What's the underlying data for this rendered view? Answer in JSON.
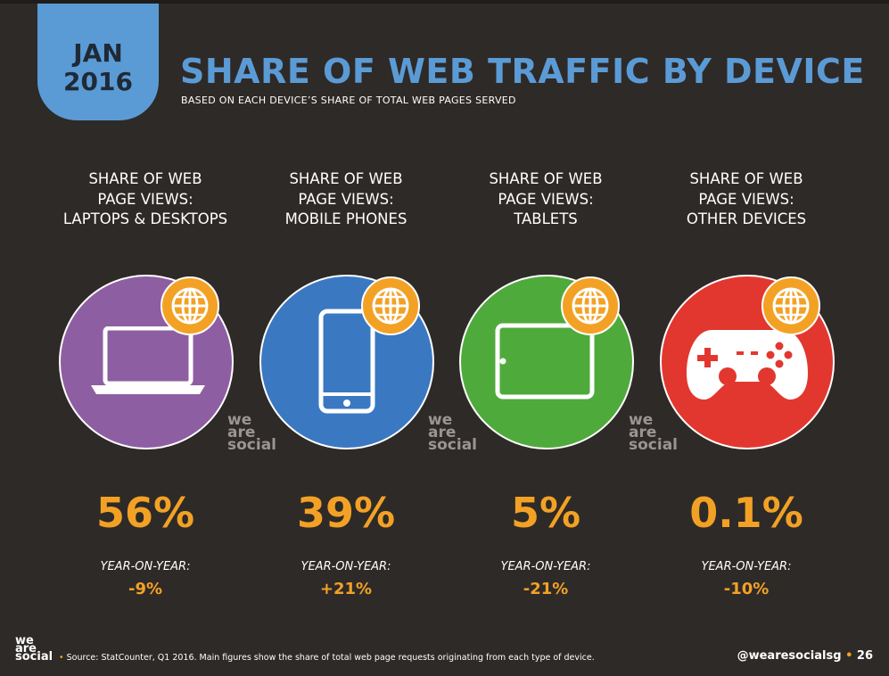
{
  "header": {
    "month": "JAN",
    "year": "2016",
    "title": "SHARE OF WEB TRAFFIC BY DEVICE",
    "subtitle": "BASED ON EACH DEVICE’S SHARE OF TOTAL WEB PAGES SERVED"
  },
  "chart_data": {
    "type": "table",
    "title": "SHARE OF WEB TRAFFIC BY DEVICE",
    "categories": [
      "LAPTOPS & DESKTOPS",
      "MOBILE PHONES",
      "TABLETS",
      "OTHER DEVICES"
    ],
    "series": [
      {
        "name": "SHARE OF WEB PAGE VIEWS",
        "values": [
          56,
          39,
          5,
          0.1
        ]
      },
      {
        "name": "YEAR-ON-YEAR",
        "values": [
          -9,
          21,
          -21,
          -10
        ]
      }
    ]
  },
  "columns": [
    {
      "label_1": "SHARE OF WEB",
      "label_2": "PAGE VIEWS:",
      "label_3": "LAPTOPS & DESKTOPS",
      "value": "56%",
      "yoy_label": "YEAR-ON-YEAR:",
      "yoy_value": "-9%",
      "color": "#8e5ea2",
      "icon": "laptop-icon"
    },
    {
      "label_1": "SHARE OF WEB",
      "label_2": "PAGE VIEWS:",
      "label_3": "MOBILE PHONES",
      "value": "39%",
      "yoy_label": "YEAR-ON-YEAR:",
      "yoy_value": "+21%",
      "color": "#3a78c2",
      "icon": "mobile-phone-icon"
    },
    {
      "label_1": "SHARE OF WEB",
      "label_2": "PAGE VIEWS:",
      "label_3": "TABLETS",
      "value": "5%",
      "yoy_label": "YEAR-ON-YEAR:",
      "yoy_value": "-21%",
      "color": "#4faa3c",
      "icon": "tablet-icon"
    },
    {
      "label_1": "SHARE OF WEB",
      "label_2": "PAGE VIEWS:",
      "label_3": "OTHER DEVICES",
      "value": "0.1%",
      "yoy_label": "YEAR-ON-YEAR:",
      "yoy_value": "-10%",
      "color": "#e2372f",
      "icon": "gamepad-icon"
    }
  ],
  "brand": {
    "line1": "we",
    "line2": "are",
    "line3": "social"
  },
  "footer": {
    "bullet": "•",
    "source": "Source: StatCounter, Q1 2016. Main figures show the share of total web page requests originating from each type of device.",
    "handle": "@wearesocialsg",
    "separator": "•",
    "page": "26"
  },
  "colors": {
    "accent": "#f3a125",
    "title_blue": "#5b9bd5",
    "background": "#2e2a28"
  }
}
